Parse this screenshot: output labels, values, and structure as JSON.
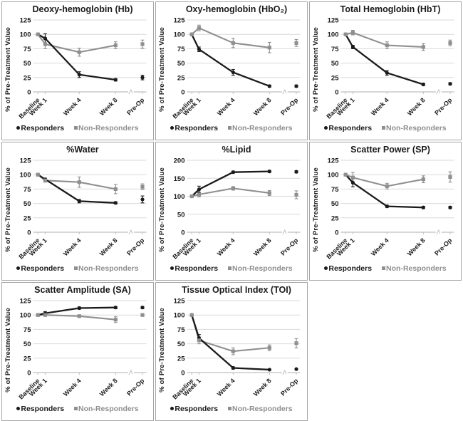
{
  "legend": {
    "responders": "Responders",
    "non_responders": "Non-Responders"
  },
  "axis": {
    "y_label": "% of Pre-Treatment Value",
    "categories": [
      "Baseline",
      "Week 1",
      "Week 4",
      "Week 8",
      "Pre-Op"
    ]
  },
  "colors": {
    "responders": "#1a1a1a",
    "non_responders": "#8f8f8f",
    "gridline": "#d9d9d9",
    "axis_line": "#bfbfbf",
    "panel_border": "#a6a6a6"
  },
  "layout_notes": {
    "grid": "on",
    "legend_position": "bottom",
    "axis_break_before_preop": true,
    "preop_point_disconnected": true
  },
  "chart_data": [
    {
      "type": "line",
      "title": "Deoxy-hemoglobin (Hb)",
      "ylabel": "% of Pre-Treatment Value",
      "categories": [
        "Baseline",
        "Week 1",
        "Week 4",
        "Week 8",
        "Pre-Op"
      ],
      "ylim": [
        0,
        125
      ],
      "yticks": [
        0,
        25,
        50,
        75,
        100,
        125
      ],
      "series": [
        {
          "name": "Responders",
          "marker": "circle",
          "values": [
            100,
            93,
            30,
            21,
            25
          ],
          "errors": [
            0,
            8,
            5,
            2,
            4
          ]
        },
        {
          "name": "Non-Responders",
          "marker": "square",
          "values": [
            100,
            83,
            69,
            81,
            83
          ],
          "errors": [
            2,
            8,
            7,
            6,
            7
          ]
        }
      ]
    },
    {
      "type": "line",
      "title": "Oxy-hemoglobin (HbO₂)",
      "ylabel": "% of Pre-Treatment Value",
      "categories": [
        "Baseline",
        "Week 1",
        "Week 4",
        "Week 8",
        "Pre-Op"
      ],
      "ylim": [
        0,
        125
      ],
      "yticks": [
        0,
        25,
        50,
        75,
        100,
        125
      ],
      "series": [
        {
          "name": "Responders",
          "marker": "circle",
          "values": [
            100,
            74,
            34,
            10,
            10
          ],
          "errors": [
            0,
            4,
            5,
            2,
            2
          ]
        },
        {
          "name": "Non-Responders",
          "marker": "square",
          "values": [
            100,
            111,
            85,
            77,
            85
          ],
          "errors": [
            2,
            5,
            8,
            9,
            6
          ]
        }
      ]
    },
    {
      "type": "line",
      "title": "Total Hemoglobin (HbT)",
      "ylabel": "% of Pre-Treatment Value",
      "categories": [
        "Baseline",
        "Week 1",
        "Week 4",
        "Week 8",
        "Pre-Op"
      ],
      "ylim": [
        0,
        125
      ],
      "yticks": [
        0,
        25,
        50,
        75,
        100,
        125
      ],
      "series": [
        {
          "name": "Responders",
          "marker": "circle",
          "values": [
            100,
            78,
            33,
            13,
            14
          ],
          "errors": [
            0,
            3,
            4,
            2,
            2
          ]
        },
        {
          "name": "Non-Responders",
          "marker": "square",
          "values": [
            100,
            103,
            81,
            78,
            85
          ],
          "errors": [
            2,
            4,
            6,
            6,
            5
          ]
        }
      ]
    },
    {
      "type": "line",
      "title": "%Water",
      "ylabel": "% of Pre-Treatment Value",
      "categories": [
        "Baseline",
        "Week 1",
        "Week 4",
        "Week 8",
        "Pre-Op"
      ],
      "ylim": [
        0,
        125
      ],
      "yticks": [
        0,
        25,
        50,
        75,
        100,
        125
      ],
      "series": [
        {
          "name": "Responders",
          "marker": "circle",
          "values": [
            100,
            92,
            54,
            51,
            57
          ],
          "errors": [
            0,
            2,
            3,
            2,
            6
          ]
        },
        {
          "name": "Non-Responders",
          "marker": "square",
          "values": [
            100,
            90,
            87,
            75,
            79
          ],
          "errors": [
            2,
            3,
            9,
            8,
            5
          ]
        }
      ]
    },
    {
      "type": "line",
      "title": "%Lipid",
      "ylabel": "% of Pre-Treatment Value",
      "categories": [
        "Baseline",
        "Week 1",
        "Week 4",
        "Week 8",
        "Pre-Op"
      ],
      "ylim": [
        0,
        200
      ],
      "yticks": [
        0,
        50,
        100,
        150,
        200
      ],
      "series": [
        {
          "name": "Responders",
          "marker": "circle",
          "values": [
            100,
            119,
            167,
            169,
            168
          ],
          "errors": [
            0,
            9,
            3,
            3,
            3
          ]
        },
        {
          "name": "Non-Responders",
          "marker": "square",
          "values": [
            100,
            105,
            122,
            109,
            104
          ],
          "errors": [
            2,
            7,
            5,
            7,
            11
          ]
        }
      ]
    },
    {
      "type": "line",
      "title": "Scatter Power (SP)",
      "ylabel": "% of Pre-Treatment Value",
      "categories": [
        "Baseline",
        "Week 1",
        "Week 4",
        "Week 8",
        "Pre-Op"
      ],
      "ylim": [
        0,
        125
      ],
      "yticks": [
        0,
        25,
        50,
        75,
        100,
        125
      ],
      "series": [
        {
          "name": "Responders",
          "marker": "circle",
          "values": [
            100,
            86,
            45,
            43,
            43
          ],
          "errors": [
            0,
            7,
            2,
            2,
            2
          ]
        },
        {
          "name": "Non-Responders",
          "marker": "square",
          "values": [
            100,
            95,
            80,
            92,
            96
          ],
          "errors": [
            2,
            9,
            5,
            6,
            9
          ]
        }
      ]
    },
    {
      "type": "line",
      "title": "Scatter Amplitude (SA)",
      "ylabel": "% of Pre-Treatment Value",
      "categories": [
        "Baseline",
        "Week 1",
        "Week 4",
        "Week 8",
        "Pre-Op"
      ],
      "ylim": [
        0,
        125
      ],
      "yticks": [
        0,
        25,
        50,
        75,
        100,
        125
      ],
      "series": [
        {
          "name": "Responders",
          "marker": "circle",
          "values": [
            100,
            103,
            112,
            113,
            113
          ],
          "errors": [
            0,
            3,
            2,
            2,
            2
          ]
        },
        {
          "name": "Non-Responders",
          "marker": "square",
          "values": [
            100,
            100,
            98,
            92,
            100
          ],
          "errors": [
            2,
            2,
            2,
            5,
            2
          ]
        }
      ]
    },
    {
      "type": "line",
      "title": "Tissue Optical Index (TOI)",
      "ylabel": "% of Pre-Treatment Value",
      "categories": [
        "Baseline",
        "Week 1",
        "Week 4",
        "Week 8",
        "Pre-Op"
      ],
      "ylim": [
        0,
        125
      ],
      "yticks": [
        0,
        25,
        50,
        75,
        100,
        125
      ],
      "series": [
        {
          "name": "Responders",
          "marker": "circle",
          "values": [
            100,
            60,
            8,
            5,
            6
          ],
          "errors": [
            0,
            6,
            2,
            1,
            1
          ]
        },
        {
          "name": "Non-Responders",
          "marker": "square",
          "values": [
            100,
            56,
            37,
            43,
            51
          ],
          "errors": [
            2,
            6,
            6,
            5,
            8
          ]
        }
      ]
    }
  ]
}
